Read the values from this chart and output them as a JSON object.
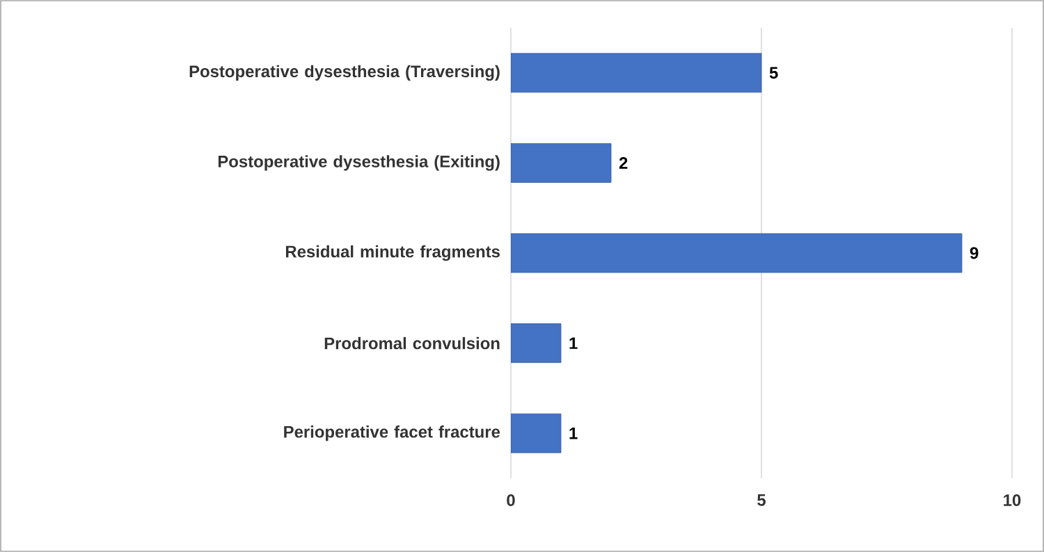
{
  "chart_data": {
    "type": "bar",
    "orientation": "horizontal",
    "categories": [
      "Postoperative dysesthesia (Traversing)",
      "Postoperative dysesthesia (Exiting)",
      "Residual minute fragments",
      "Prodromal convulsion",
      "Perioperative facet fracture"
    ],
    "values": [
      5,
      2,
      9,
      1,
      1
    ],
    "color": "#4472c4",
    "xlim": [
      0,
      10
    ],
    "xticks": [
      0,
      5,
      10
    ],
    "grid": "x",
    "data_labels": true
  }
}
